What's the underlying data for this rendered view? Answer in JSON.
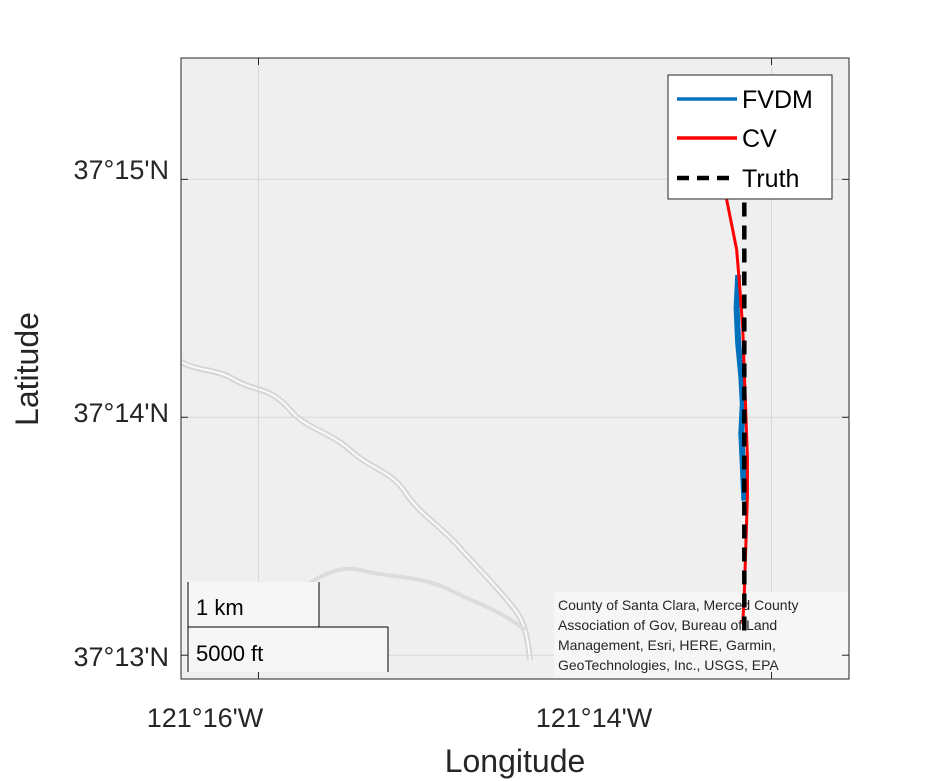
{
  "map": {
    "xlabel": "Longitude",
    "ylabel": "Latitude",
    "lon_ticks": [
      "121°16'W",
      "121°14'W"
    ],
    "lat_ticks": [
      "37°15'N",
      "37°14'N",
      "37°13'N"
    ],
    "lon_range_deg": [
      -121.2717,
      -121.2283
    ],
    "lat_range_deg": [
      37.215,
      37.2585
    ],
    "grid": true,
    "basemap": "light gray canvas with a river line"
  },
  "legend": {
    "position": "top-right",
    "items": [
      {
        "label": "FVDM",
        "color": "#0072BD",
        "style": "solid"
      },
      {
        "label": "CV",
        "color": "#FF0000",
        "style": "solid"
      },
      {
        "label": "Truth",
        "color": "#000000",
        "style": "dashed"
      }
    ]
  },
  "scalebar": {
    "metric": "1 km",
    "imperial": "5000 ft"
  },
  "attribution": [
    "County of Santa Clara, Merced County",
    "Association of Gov, Bureau of Land",
    "Management, Esri, HERE, Garmin,",
    "GeoTechnologies, Inc., USGS, EPA"
  ],
  "tracks": {
    "truth": [
      [
        -121.2351,
        37.2184
      ],
      [
        -121.2351,
        37.2518
      ]
    ],
    "cv": [
      [
        -121.2373,
        37.2565
      ],
      [
        -121.237,
        37.2535
      ],
      [
        -121.2366,
        37.2505
      ],
      [
        -121.2361,
        37.2478
      ],
      [
        -121.2356,
        37.2451
      ],
      [
        -121.2354,
        37.2425
      ],
      [
        -121.2352,
        37.2395
      ],
      [
        -121.2351,
        37.2365
      ],
      [
        -121.235,
        37.2335
      ],
      [
        -121.2349,
        37.2305
      ],
      [
        -121.2349,
        37.2277
      ],
      [
        -121.235,
        37.2245
      ],
      [
        -121.2351,
        37.221
      ],
      [
        -121.2352,
        37.2189
      ]
    ],
    "fvdm": [
      [
        -121.2355,
        37.2433
      ],
      [
        -121.2356,
        37.241
      ],
      [
        -121.2355,
        37.2385
      ],
      [
        -121.2353,
        37.2362
      ],
      [
        -121.2352,
        37.2343
      ],
      [
        -121.2353,
        37.2322
      ],
      [
        -121.2352,
        37.23
      ],
      [
        -121.2351,
        37.2275
      ]
    ]
  }
}
